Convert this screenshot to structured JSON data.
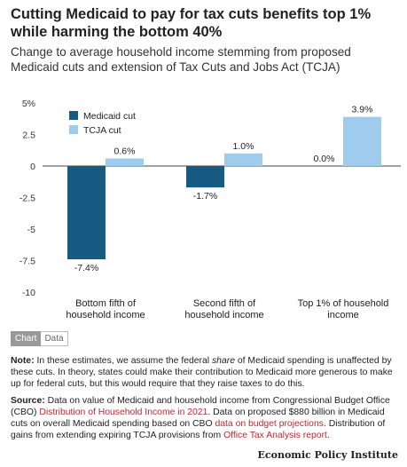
{
  "title": "Cutting Medicaid to pay for tax cuts benefits top 1% while harming the bottom 40%",
  "subtitle": "Change to average household income stemming from proposed Medicaid cuts and extension of Tax Cuts and Jobs Act (TCJA)",
  "chart_data": {
    "type": "bar",
    "categories": [
      "Bottom fifth of household income",
      "Second fifth of household income",
      "Top 1% of household income"
    ],
    "category_lines": [
      [
        "Bottom fifth of",
        "household income"
      ],
      [
        "Second fifth of",
        "household income"
      ],
      [
        "Top 1% of household",
        "income"
      ]
    ],
    "series": [
      {
        "name": "Medicaid cut",
        "values": [
          -7.4,
          -1.7,
          0.0
        ],
        "labels": [
          "-7.4%",
          "-1.7%",
          "0.0%"
        ],
        "color": "#175b82"
      },
      {
        "name": "TCJA cut",
        "values": [
          0.6,
          1.0,
          3.9
        ],
        "labels": [
          "0.6%",
          "1.0%",
          "3.9%"
        ],
        "color": "#9fcbec"
      }
    ],
    "ylim": [
      -10,
      5
    ],
    "yticks": [
      5,
      2.5,
      0,
      -2.5,
      -5,
      -7.5,
      -10
    ],
    "ytick_labels": [
      "5%",
      "2.5",
      "0",
      "-2.5",
      "-5",
      "-7.5",
      "-10"
    ],
    "legend": "top-left",
    "grid": false
  },
  "toggle": {
    "chart_label": "Chart",
    "data_label": "Data"
  },
  "note": {
    "label": "Note:",
    "text_before": " In these estimates, we assume the federal ",
    "emphasis": "share",
    "text_after": " of Medicaid spending is unaffected by these cuts. In theory, states could make their contribution to Medicaid more generous to make up for federal cuts, but this would require that they raise taxes to do this."
  },
  "source": {
    "label": "Source:",
    "text1": " Data on value of Medicaid and household income from Congressional Budget Office (CBO) ",
    "link1": "Distribution of Household Income in 2021",
    "text2": ". Data on proposed $880 billion in Medicaid cuts on overall Medicaid spending based on CBO ",
    "link2": "data on budget projections",
    "text3": ". Distribution of gains from extending expiring TCJA provisions from ",
    "link3": "Office Tax Analysis report",
    "text4": "."
  },
  "brand": "Economic Policy Institute"
}
